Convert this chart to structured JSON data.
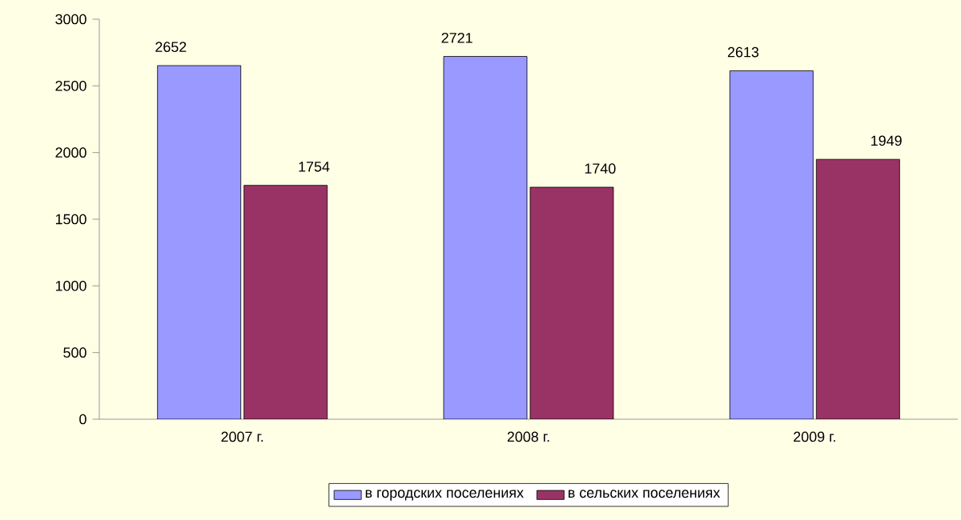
{
  "chart_data": {
    "type": "bar",
    "categories": [
      "2007 г.",
      "2008 г.",
      "2009 г."
    ],
    "series": [
      {
        "name": "в городских поселениях",
        "color": "#9999ff",
        "values": [
          2652,
          2721,
          2613
        ]
      },
      {
        "name": "в сельских поселениях",
        "color": "#993366",
        "values": [
          1754,
          1740,
          1949
        ]
      }
    ],
    "ylim": [
      0,
      3000
    ],
    "yticks": [
      0,
      500,
      1000,
      1500,
      2000,
      2500,
      3000
    ],
    "data_labels": true,
    "legend": "bottom",
    "grid": false
  }
}
